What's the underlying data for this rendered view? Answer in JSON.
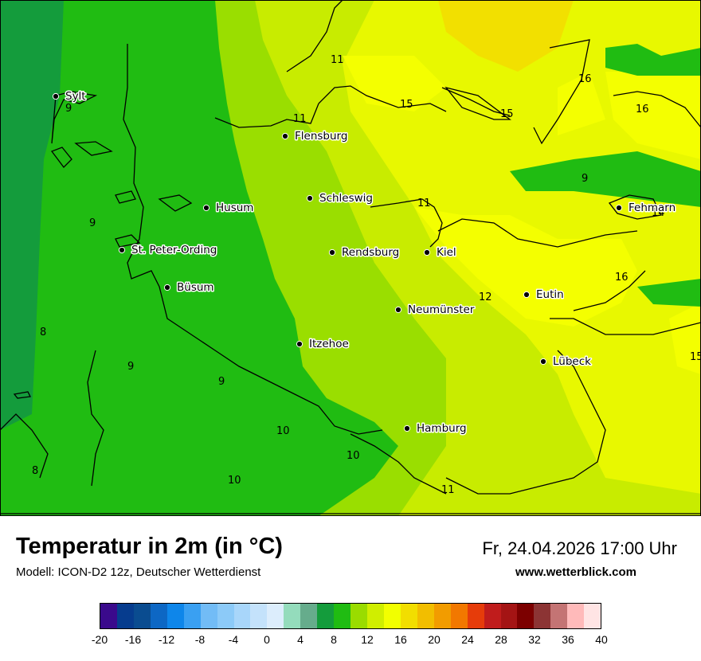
{
  "map": {
    "cities": [
      {
        "name": "Sylt"
      },
      {
        "name": "Flensburg"
      },
      {
        "name": "Schleswig"
      },
      {
        "name": "Husum"
      },
      {
        "name": "St. Peter-Ording"
      },
      {
        "name": "Rendsburg"
      },
      {
        "name": "Kiel"
      },
      {
        "name": "Fehmarn"
      },
      {
        "name": "Büsum"
      },
      {
        "name": "Eutin"
      },
      {
        "name": "Neumünster"
      },
      {
        "name": "Itzehoe"
      },
      {
        "name": "Lübeck"
      },
      {
        "name": "Hamburg"
      }
    ],
    "isotherm_labels": [
      "11",
      "15",
      "16",
      "16",
      "15",
      "11",
      "9",
      "9",
      "9",
      "11",
      "14",
      "16",
      "12",
      "8",
      "9",
      "9",
      "10",
      "10",
      "8",
      "10",
      "11",
      "15"
    ]
  },
  "header": {
    "title": "Temperatur in 2m (in °C)",
    "model": "Modell: ICON-D2 12z, Deutscher Wetterdienst",
    "datetime": "Fr, 24.04.2026 17:00 Uhr",
    "website": "www.wetterblick.com"
  },
  "legend": {
    "colors": [
      "#3a0a8c",
      "#063c8e",
      "#0a4c90",
      "#0d67c4",
      "#0e86ea",
      "#3aa0f2",
      "#72bcf6",
      "#8ccaf8",
      "#a8d6fa",
      "#c4e2fb",
      "#dcedfc",
      "#94dcbc",
      "#66ac8c",
      "#149c3c",
      "#20bc12",
      "#9adc00",
      "#d0ee00",
      "#f2ff00",
      "#f2de00",
      "#f2be00",
      "#f29c00",
      "#f27800",
      "#e63c0a",
      "#c01c1c",
      "#a41414",
      "#7c0000",
      "#8c3434",
      "#c47474",
      "#ffbaba",
      "#ffe4e4"
    ],
    "ticks": [
      "-20",
      "-16",
      "-12",
      "-8",
      "-4",
      "0",
      "4",
      "8",
      "12",
      "16",
      "20",
      "24",
      "28",
      "32",
      "36",
      "40"
    ]
  }
}
